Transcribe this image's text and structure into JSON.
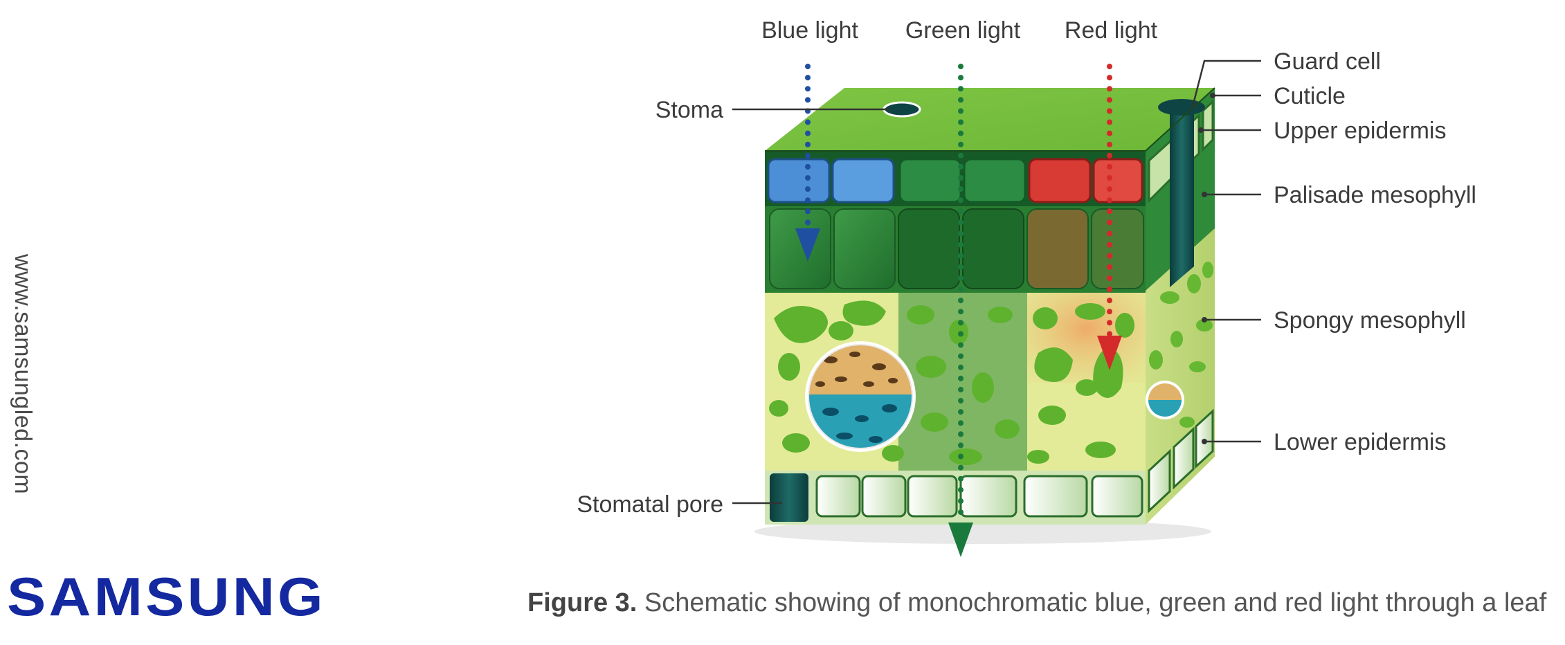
{
  "website": "www.samsungled.com",
  "logo_text": "SAMSUNG",
  "caption": {
    "label": "Figure 3.",
    "text": " Schematic showing of monochromatic blue, green and red light through a leaf"
  },
  "light_beams": {
    "blue": {
      "label": "Blue light",
      "color": "#1f4fa0"
    },
    "green": {
      "label": "Green light",
      "color": "#1a7a3c"
    },
    "red": {
      "label": "Red light",
      "color": "#d42a2a"
    }
  },
  "leaf_layers": {
    "guard_cell": "Guard cell",
    "cuticle": "Cuticle",
    "upper_epidermis": "Upper epidermis",
    "palisade_mesophyll": "Palisade mesophyll",
    "spongy_mesophyll": "Spongy mesophyll",
    "lower_epidermis": "Lower epidermis",
    "stoma": "Stoma",
    "stomatal_pore": "Stomatal pore"
  },
  "colors": {
    "leaf_top": "#7dc242",
    "palisade": "#2f8a3a",
    "spongy_bg": "#e6ec9a",
    "spongy_blob": "#66b832",
    "epidermis": "#d8ecc0",
    "pore": "#0e4a4a",
    "brand": "#1428a0"
  }
}
